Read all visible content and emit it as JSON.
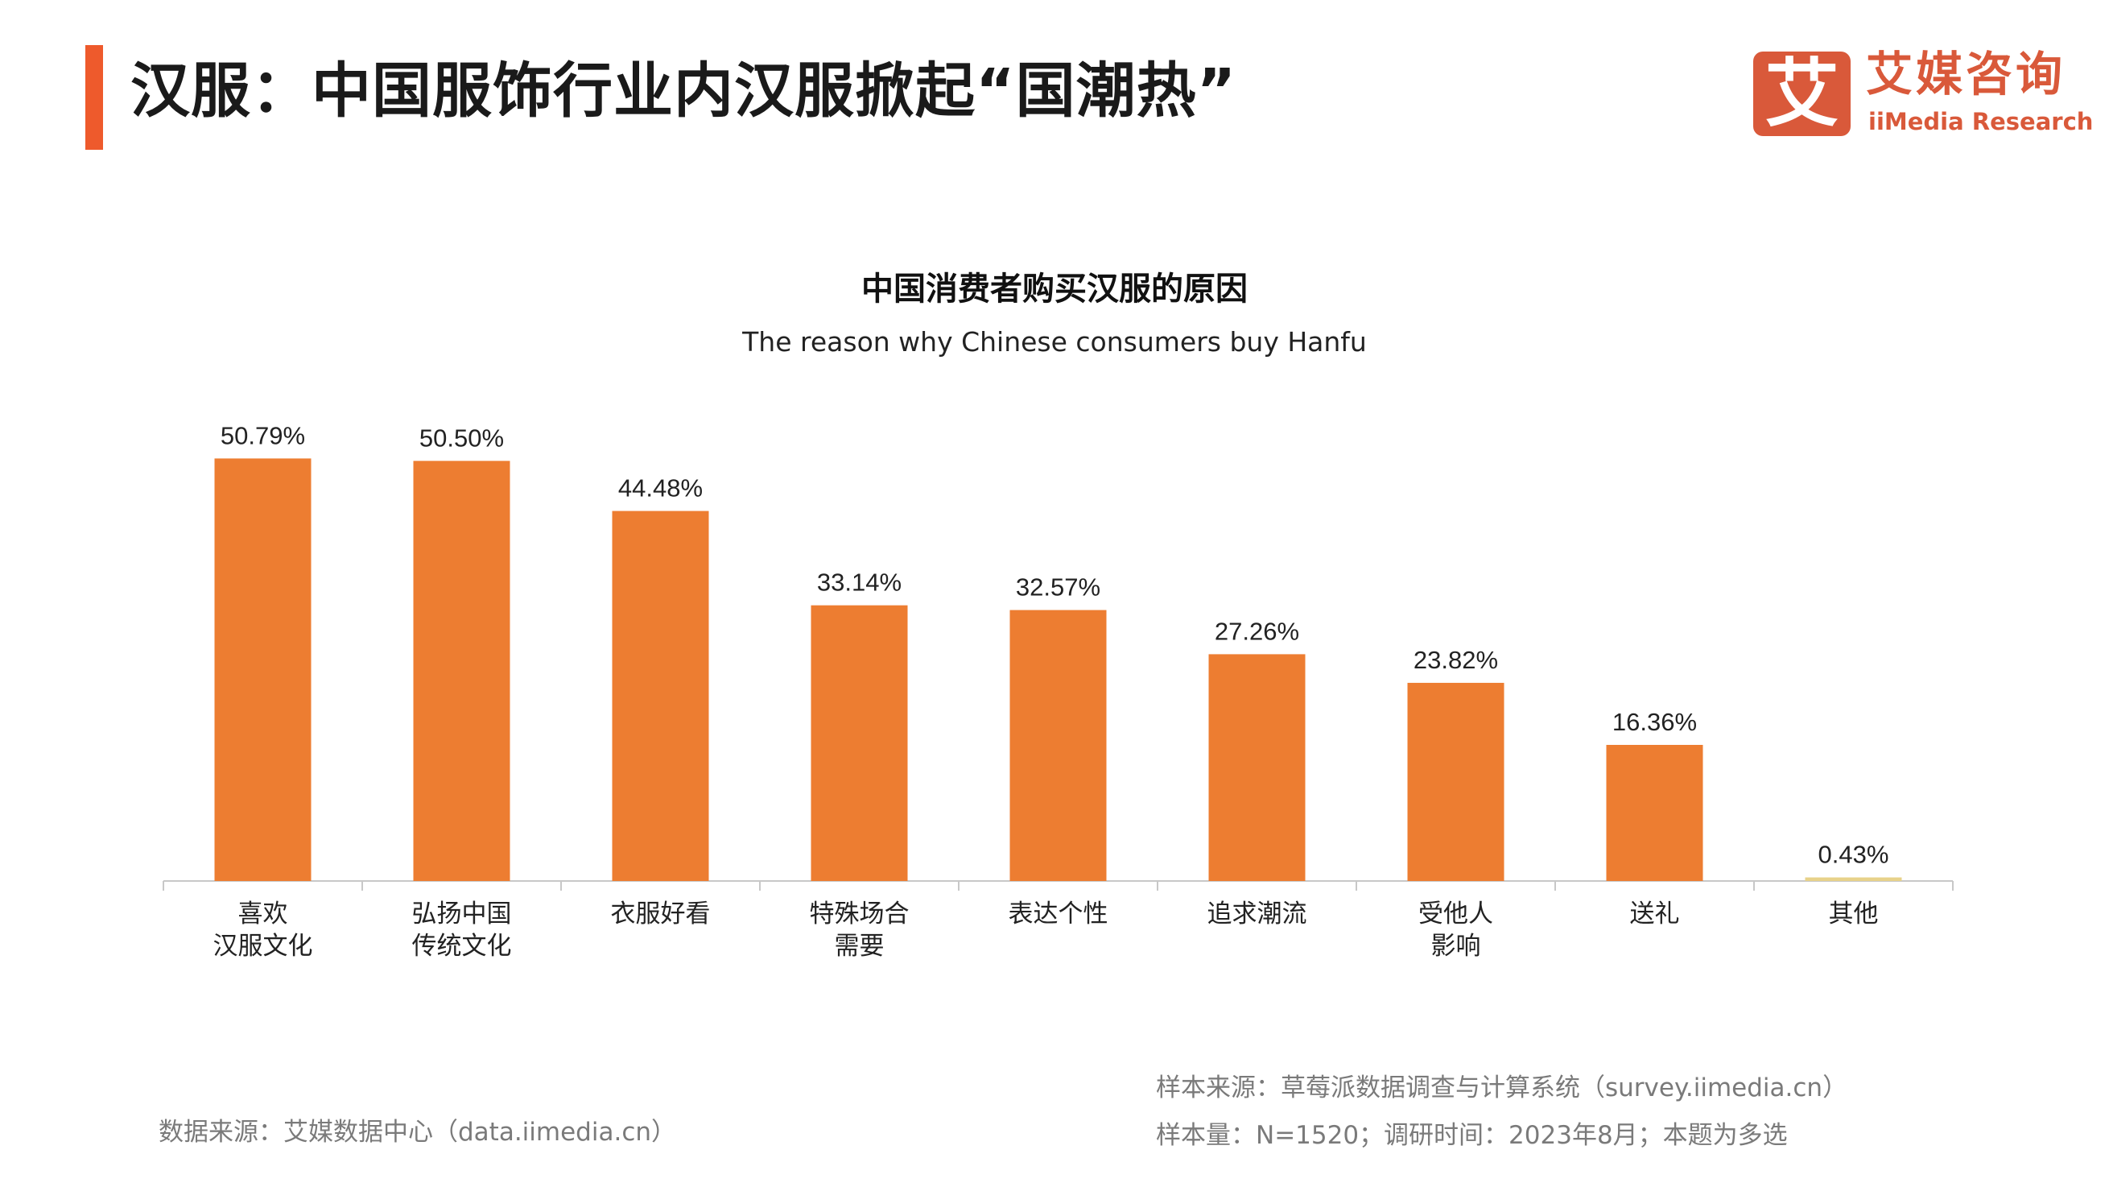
{
  "header": {
    "title": "汉服：中国服饰行业内汉服掀起“国潮热”"
  },
  "logo": {
    "mark": "艾",
    "cn": "艾媒咨询",
    "en": "iiMedia Research"
  },
  "chart_data": {
    "type": "bar",
    "title": "中国消费者购买汉服的原因",
    "subtitle": "The reason why Chinese consumers buy Hanfu",
    "categories": [
      [
        "喜欢",
        "汉服文化"
      ],
      [
        "弘扬中国",
        "传统文化"
      ],
      [
        "衣服好看"
      ],
      [
        "特殊场合",
        "需要"
      ],
      [
        "表达个性"
      ],
      [
        "追求潮流"
      ],
      [
        "受他人",
        "影响"
      ],
      [
        "送礼"
      ],
      [
        "其他"
      ]
    ],
    "values": [
      50.79,
      50.5,
      44.48,
      33.14,
      32.57,
      27.26,
      23.82,
      16.36,
      0.43
    ],
    "labels": [
      "50.79%",
      "50.50%",
      "44.48%",
      "33.14%",
      "32.57%",
      "27.26%",
      "23.82%",
      "16.36%",
      "0.43%"
    ],
    "unit": "%",
    "ylim": [
      0,
      55
    ],
    "grid": false,
    "bar_color": "#ED7D31"
  },
  "footer": {
    "source": "数据来源：艾媒数据中心（data.iimedia.cn）",
    "sample_source": "样本来源：草莓派数据调查与计算系统（survey.iimedia.cn）",
    "sample_info": "样本量：N=1520；调研时间：2023年8月；本题为多选"
  }
}
